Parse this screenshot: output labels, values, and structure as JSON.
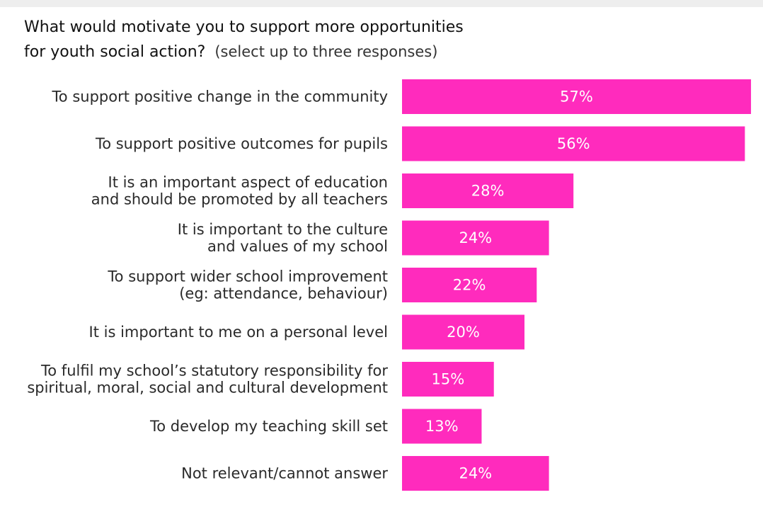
{
  "chart_data": {
    "type": "bar",
    "orientation": "horizontal",
    "title_line1": "What would motivate you to support more opportunities",
    "title_line2": "for youth social action?",
    "subtitle": "(select up to three responses)",
    "categories": [
      [
        "To support positive change in the community"
      ],
      [
        "To support positive outcomes for pupils"
      ],
      [
        "It is an important aspect of education",
        "and should be promoted by all teachers"
      ],
      [
        "It is important to the culture",
        "and values of my school"
      ],
      [
        "To support wider school improvement",
        "(eg: attendance, behaviour)"
      ],
      [
        "It is important to me on a personal level"
      ],
      [
        "To fulfil my school’s statutory responsibility for",
        "spiritual, moral, social and cultural development"
      ],
      [
        "To develop my teaching skill set"
      ],
      [
        "Not relevant/cannot answer"
      ]
    ],
    "values": [
      57,
      56,
      28,
      24,
      22,
      20,
      15,
      13,
      24
    ],
    "value_labels": [
      "57%",
      "56%",
      "28%",
      "24%",
      "22%",
      "20%",
      "15%",
      "13%",
      "24%"
    ],
    "unit": "%",
    "bar_color": "#ff2bbd",
    "label_color": "#ffffff",
    "grid": false,
    "legend": "none"
  }
}
